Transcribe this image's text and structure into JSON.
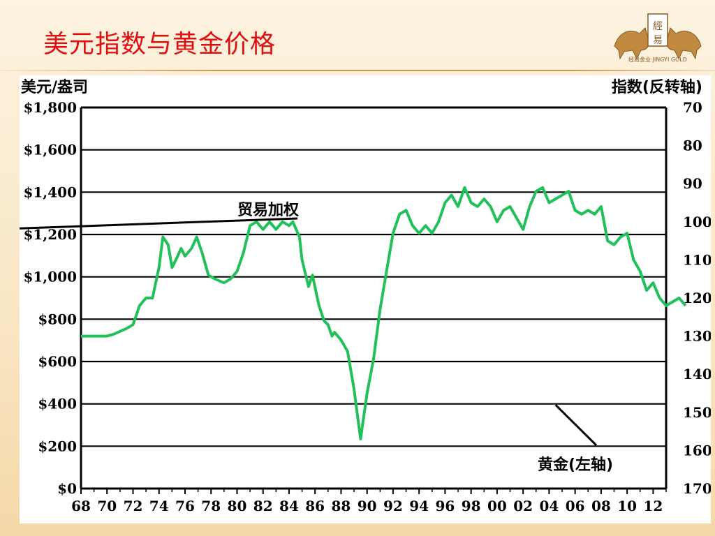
{
  "slide": {
    "title": "美元指数与黄金价格",
    "logo_text": "經易",
    "logo_caption": "经易金业·JINGYI GOLD"
  },
  "chart_data": {
    "type": "line",
    "left_axis_label": "美元/盎司",
    "right_axis_label": "指数(反转轴)",
    "left_ticks": [
      "$1,800",
      "$1,600",
      "$1,400",
      "$1,200",
      "$1,000",
      "$800",
      "$600",
      "$400",
      "$200",
      "$0"
    ],
    "right_ticks": [
      "70",
      "80",
      "90",
      "100",
      "110",
      "120",
      "130",
      "140",
      "150",
      "160",
      "170"
    ],
    "x_ticks": [
      "68",
      "70",
      "72",
      "74",
      "76",
      "78",
      "80",
      "82",
      "84",
      "86",
      "88",
      "90",
      "92",
      "94",
      "96",
      "98",
      "00",
      "02",
      "04",
      "06",
      "08",
      "10",
      "12"
    ],
    "left_ylim": [
      0,
      1800
    ],
    "right_ylim_inverted": [
      70,
      170
    ],
    "x_range": [
      1968,
      2013
    ],
    "grid": "horizontal",
    "colors": {
      "gold": "#ee1c1c",
      "dollar": "#22c05a"
    },
    "annotations": [
      {
        "text": "贸易加权",
        "series": "dollar",
        "point": [
          1887.7,
          111
        ]
      },
      {
        "text": "黄金(左轴)",
        "series": "gold",
        "point": [
          2004.5,
          395
        ]
      }
    ],
    "series": [
      {
        "name": "贸易加权",
        "axis": "right",
        "points": [
          [
            1968,
            130
          ],
          [
            1969.5,
            130
          ],
          [
            1970,
            130
          ],
          [
            1970.5,
            129.5
          ],
          [
            1971.5,
            128
          ],
          [
            1972,
            127
          ],
          [
            1972.5,
            122
          ],
          [
            1973,
            120
          ],
          [
            1973.5,
            120
          ],
          [
            1974,
            112
          ],
          [
            1974.3,
            104
          ],
          [
            1974.7,
            106
          ],
          [
            1975,
            112
          ],
          [
            1975.3,
            110
          ],
          [
            1975.7,
            107
          ],
          [
            1976,
            109
          ],
          [
            1976.5,
            107
          ],
          [
            1976.9,
            104
          ],
          [
            1977.3,
            108
          ],
          [
            1977.8,
            114
          ],
          [
            1978.3,
            115
          ],
          [
            1979,
            116
          ],
          [
            1979.5,
            115
          ],
          [
            1980,
            113
          ],
          [
            1980.5,
            108
          ],
          [
            1981,
            101
          ],
          [
            1981.5,
            100
          ],
          [
            1982,
            102
          ],
          [
            1982.5,
            100
          ],
          [
            1983,
            102
          ],
          [
            1983.5,
            100
          ],
          [
            1984,
            101
          ],
          [
            1984.3,
            100
          ],
          [
            1984.8,
            104
          ],
          [
            1985,
            110
          ],
          [
            1985.5,
            117
          ],
          [
            1985.8,
            114
          ],
          [
            1986.3,
            122
          ],
          [
            1986.7,
            126
          ],
          [
            1987,
            127
          ],
          [
            1987.3,
            130
          ],
          [
            1987.5,
            129
          ],
          [
            1988,
            131
          ],
          [
            1988.5,
            134
          ],
          [
            1989,
            144
          ],
          [
            1989.5,
            157
          ],
          [
            1990,
            145
          ],
          [
            1990.5,
            136
          ],
          [
            1991,
            123
          ],
          [
            1991.5,
            113
          ],
          [
            1992,
            103
          ],
          [
            1992.5,
            98
          ],
          [
            1993,
            97
          ],
          [
            1993.5,
            101
          ],
          [
            1994,
            103
          ],
          [
            1994.5,
            101
          ],
          [
            1995,
            103
          ],
          [
            1995.5,
            100
          ],
          [
            1996,
            95
          ],
          [
            1996.5,
            93
          ],
          [
            1997,
            96
          ],
          [
            1997.5,
            91
          ],
          [
            1998,
            95
          ],
          [
            1998.5,
            96
          ],
          [
            1999,
            94
          ],
          [
            1999.5,
            96
          ],
          [
            2000,
            100
          ],
          [
            2000.5,
            97
          ],
          [
            2001,
            96
          ],
          [
            2001.5,
            99
          ],
          [
            2002,
            102
          ],
          [
            2002.5,
            96
          ],
          [
            2003,
            92
          ],
          [
            2003.5,
            91
          ],
          [
            2004,
            95
          ],
          [
            2004.5,
            94
          ],
          [
            2005,
            93
          ],
          [
            2005.5,
            92
          ],
          [
            2006,
            97
          ],
          [
            2006.5,
            98
          ],
          [
            2007,
            97
          ],
          [
            2007.5,
            98
          ],
          [
            2008,
            96
          ],
          [
            2008.5,
            105
          ],
          [
            2009,
            106
          ],
          [
            2009.5,
            104
          ],
          [
            2010,
            103
          ],
          [
            2010.5,
            110
          ],
          [
            2011,
            113
          ],
          [
            2011.5,
            118
          ],
          [
            2012,
            116
          ],
          [
            2012.5,
            120
          ],
          [
            2013,
            122
          ],
          [
            2013.5,
            121
          ],
          [
            2014,
            120
          ],
          [
            2014.5,
            122
          ]
        ]
      }
    ]
  }
}
